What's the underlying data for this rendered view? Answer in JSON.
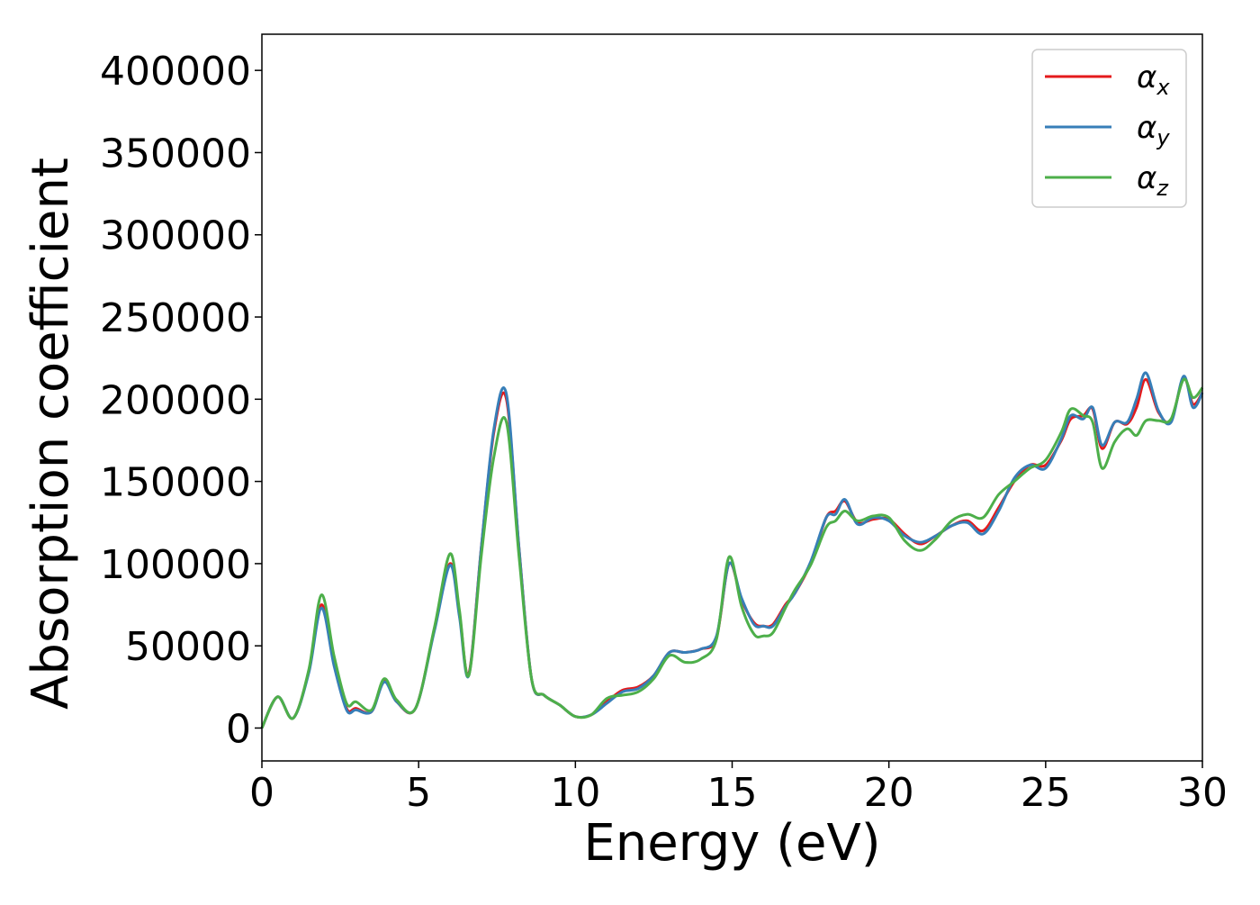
{
  "chart_data": {
    "type": "line",
    "title": "",
    "xlabel": "Energy (eV)",
    "ylabel": "Absorption coefficient",
    "xlim": [
      0,
      30
    ],
    "ylim": [
      -20000,
      422000
    ],
    "xticks": [
      0,
      5,
      10,
      15,
      20,
      25,
      30
    ],
    "yticks": [
      0,
      50000,
      100000,
      150000,
      200000,
      250000,
      300000,
      350000,
      400000
    ],
    "grid": false,
    "legend_position": "top-right",
    "legend": [
      {
        "symbol": "α",
        "sub": "x",
        "color": "#e41a1c"
      },
      {
        "symbol": "α",
        "sub": "y",
        "color": "#377eb8"
      },
      {
        "symbol": "α",
        "sub": "z",
        "color": "#4daf4a"
      }
    ],
    "x": [
      0,
      0.5,
      1.0,
      1.5,
      1.9,
      2.3,
      2.7,
      3.0,
      3.5,
      3.9,
      4.3,
      4.9,
      5.5,
      6.0,
      6.3,
      6.6,
      7.0,
      7.4,
      7.8,
      8.2,
      8.6,
      9.0,
      9.5,
      10.0,
      10.5,
      11.0,
      11.5,
      12.0,
      12.5,
      13.0,
      13.5,
      14.0,
      14.5,
      14.9,
      15.3,
      15.7,
      16.0,
      16.3,
      16.7,
      17.0,
      17.5,
      18.0,
      18.3,
      18.6,
      19.0,
      19.5,
      20.0,
      20.5,
      21.0,
      21.5,
      22.0,
      22.5,
      23.0,
      23.5,
      24.0,
      24.5,
      25.0,
      25.5,
      25.8,
      26.2,
      26.5,
      26.8,
      27.2,
      27.6,
      27.9,
      28.2,
      28.6,
      29.0,
      29.4,
      29.7,
      30.0
    ],
    "series": [
      {
        "key": "x",
        "color": "#e41a1c",
        "values": [
          0,
          19000,
          6000,
          35000,
          75000,
          40000,
          12000,
          12000,
          10000,
          29000,
          16000,
          12000,
          60000,
          100000,
          70000,
          33000,
          110000,
          180000,
          200000,
          110000,
          30000,
          20000,
          14000,
          7000,
          8000,
          16000,
          23000,
          25000,
          32000,
          46000,
          46000,
          48000,
          55000,
          100000,
          78000,
          64000,
          62000,
          63000,
          75000,
          82000,
          100000,
          128000,
          132000,
          138000,
          125000,
          127000,
          127000,
          118000,
          112000,
          117000,
          123000,
          126000,
          120000,
          134000,
          150000,
          160000,
          160000,
          175000,
          188000,
          190000,
          194000,
          170000,
          186000,
          185000,
          195000,
          212000,
          192000,
          187000,
          213000,
          197000,
          204000
        ]
      },
      {
        "key": "y",
        "color": "#377eb8",
        "values": [
          0,
          19000,
          6000,
          34000,
          73000,
          38000,
          11000,
          11000,
          10000,
          28000,
          16000,
          12000,
          59000,
          99000,
          68000,
          32000,
          110000,
          182000,
          203000,
          110000,
          30000,
          20000,
          14000,
          7000,
          8000,
          15000,
          22000,
          24000,
          32000,
          46000,
          46000,
          48000,
          56000,
          100000,
          79000,
          63000,
          62000,
          62000,
          74000,
          82000,
          101000,
          128000,
          130000,
          139000,
          124000,
          128000,
          126000,
          117000,
          113000,
          117000,
          123000,
          125000,
          118000,
          132000,
          152000,
          160000,
          158000,
          176000,
          190000,
          188000,
          195000,
          172000,
          186000,
          186000,
          200000,
          216000,
          193000,
          186000,
          214000,
          195000,
          204000
        ]
      },
      {
        "key": "z",
        "color": "#4daf4a",
        "values": [
          0,
          19000,
          6000,
          36000,
          81000,
          44000,
          15000,
          16000,
          11000,
          30000,
          17000,
          12000,
          61000,
          106000,
          72000,
          32000,
          105000,
          165000,
          186000,
          105000,
          30000,
          20000,
          14000,
          7000,
          8000,
          18000,
          20000,
          22000,
          30000,
          44000,
          40000,
          42000,
          54000,
          104000,
          74000,
          57000,
          56000,
          58000,
          73000,
          84000,
          99000,
          122000,
          126000,
          132000,
          126000,
          129000,
          128000,
          114000,
          108000,
          115000,
          126000,
          130000,
          128000,
          142000,
          150000,
          158000,
          163000,
          180000,
          194000,
          190000,
          186000,
          158000,
          174000,
          182000,
          178000,
          187000,
          187000,
          188000,
          212000,
          201000,
          207000
        ]
      }
    ]
  }
}
